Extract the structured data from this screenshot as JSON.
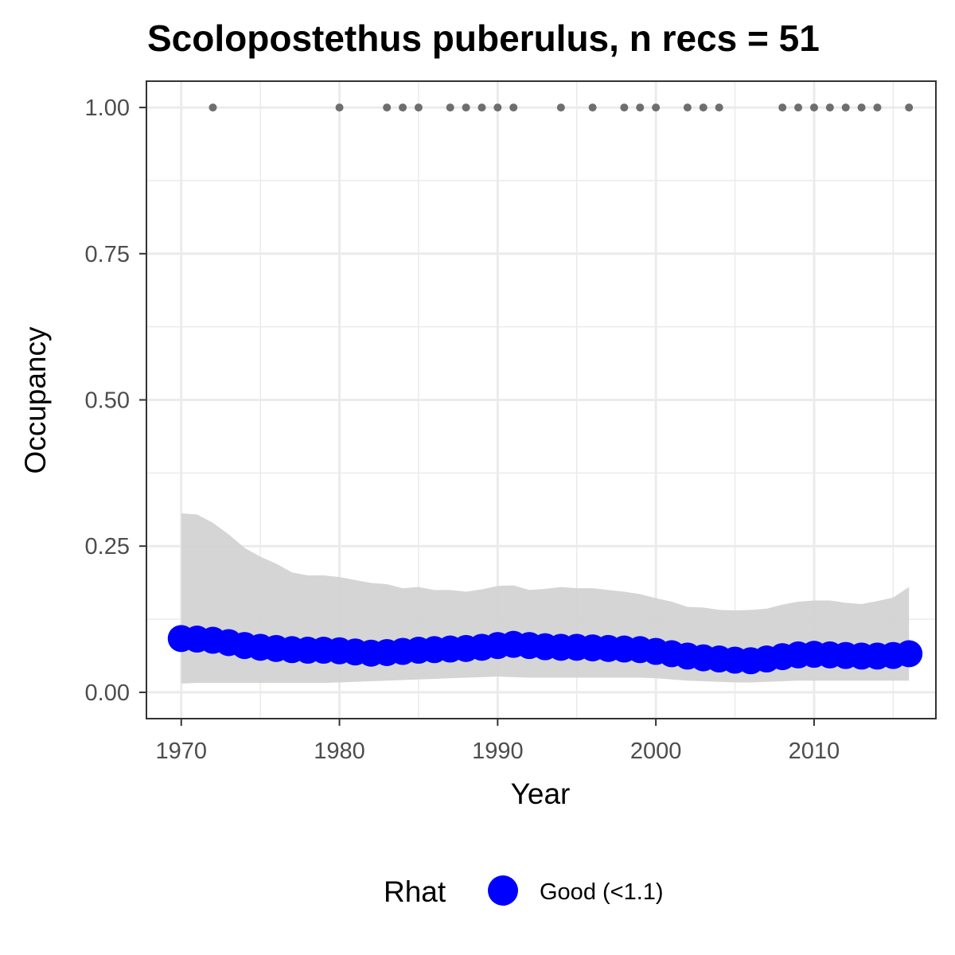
{
  "chart_data": {
    "type": "scatter",
    "title": "Scolopostethus puberulus, n recs = 51",
    "xlabel": "Year",
    "ylabel": "Occupancy",
    "xlim": [
      1967.8,
      2017.7
    ],
    "ylim": [
      -0.045,
      1.045
    ],
    "xticks": [
      1970,
      1980,
      1990,
      2000,
      2010
    ],
    "xtick_labels": [
      "1970",
      "1980",
      "1990",
      "2000",
      "2010"
    ],
    "yticks": [
      0,
      0.25,
      0.5,
      0.75,
      1
    ],
    "ytick_labels": [
      "0.00",
      "0.25",
      "0.50",
      "0.75",
      "1.00"
    ],
    "grid": true,
    "legend": {
      "position": "bottom",
      "title": "Rhat",
      "entries": [
        {
          "label": "Good (<1.1)",
          "color": "#0000ff"
        }
      ]
    },
    "colors": {
      "estimate": "#0000ff",
      "ribbon": "#d3d3d3",
      "records": "#6e6e6e",
      "grid": "#ebebeb",
      "panel_border": "#333333"
    },
    "records": {
      "name": "years with records",
      "x": [
        1972,
        1980,
        1983,
        1984,
        1985,
        1987,
        1988,
        1989,
        1990,
        1991,
        1994,
        1996,
        1998,
        1999,
        2000,
        2002,
        2003,
        2004,
        2008,
        2009,
        2010,
        2011,
        2012,
        2013,
        2014,
        2016
      ],
      "y": [
        1,
        1,
        1,
        1,
        1,
        1,
        1,
        1,
        1,
        1,
        1,
        1,
        1,
        1,
        1,
        1,
        1,
        1,
        1,
        1,
        1,
        1,
        1,
        1,
        1,
        1
      ]
    },
    "series": [
      {
        "name": "Good (<1.1)",
        "x": [
          1970,
          1971,
          1972,
          1973,
          1974,
          1975,
          1976,
          1977,
          1978,
          1979,
          1980,
          1981,
          1982,
          1983,
          1984,
          1985,
          1986,
          1987,
          1988,
          1989,
          1990,
          1991,
          1992,
          1993,
          1994,
          1995,
          1996,
          1997,
          1998,
          1999,
          2000,
          2001,
          2002,
          2003,
          2004,
          2005,
          2006,
          2007,
          2008,
          2009,
          2010,
          2011,
          2012,
          2013,
          2014,
          2015,
          2016
        ],
        "y": [
          0.092,
          0.091,
          0.089,
          0.085,
          0.08,
          0.077,
          0.075,
          0.073,
          0.072,
          0.072,
          0.071,
          0.069,
          0.067,
          0.068,
          0.07,
          0.072,
          0.073,
          0.074,
          0.075,
          0.077,
          0.08,
          0.082,
          0.08,
          0.078,
          0.077,
          0.077,
          0.076,
          0.075,
          0.074,
          0.073,
          0.07,
          0.066,
          0.062,
          0.059,
          0.057,
          0.055,
          0.054,
          0.057,
          0.061,
          0.064,
          0.065,
          0.064,
          0.063,
          0.062,
          0.062,
          0.063,
          0.066
        ],
        "lower": [
          0.015,
          0.016,
          0.016,
          0.016,
          0.016,
          0.016,
          0.016,
          0.016,
          0.016,
          0.016,
          0.017,
          0.018,
          0.019,
          0.02,
          0.021,
          0.022,
          0.023,
          0.024,
          0.025,
          0.026,
          0.027,
          0.026,
          0.025,
          0.025,
          0.025,
          0.025,
          0.025,
          0.025,
          0.025,
          0.025,
          0.024,
          0.022,
          0.02,
          0.019,
          0.018,
          0.017,
          0.017,
          0.018,
          0.019,
          0.02,
          0.02,
          0.02,
          0.02,
          0.02,
          0.02,
          0.02,
          0.02
        ],
        "upper": [
          0.306,
          0.304,
          0.29,
          0.27,
          0.247,
          0.232,
          0.22,
          0.205,
          0.2,
          0.2,
          0.197,
          0.192,
          0.187,
          0.185,
          0.178,
          0.18,
          0.175,
          0.175,
          0.172,
          0.176,
          0.182,
          0.183,
          0.175,
          0.177,
          0.18,
          0.178,
          0.178,
          0.175,
          0.172,
          0.168,
          0.161,
          0.155,
          0.146,
          0.145,
          0.141,
          0.14,
          0.141,
          0.143,
          0.15,
          0.155,
          0.157,
          0.157,
          0.153,
          0.151,
          0.156,
          0.162,
          0.18
        ]
      }
    ]
  }
}
